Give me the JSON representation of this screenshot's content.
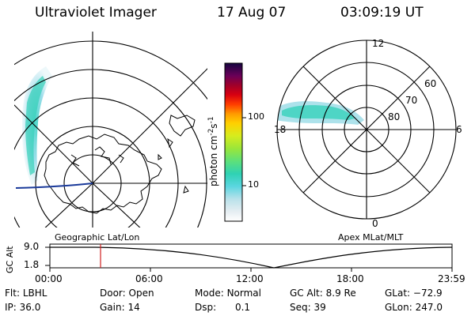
{
  "header": {
    "title": "Ultraviolet Imager",
    "date": "17 Aug 07",
    "time": "03:09:19 UT"
  },
  "colorbar": {
    "unit_label": "photon cm",
    "unit_exp1": "-2",
    "unit_s": "s",
    "unit_exp2": "-1",
    "ticks": [
      "100",
      "10"
    ]
  },
  "left_panel": {
    "caption": "Geographic Lat/Lon"
  },
  "right_panel": {
    "caption": "Apex MLat/MLT",
    "mlt_labels": [
      "12",
      "18",
      "6",
      "0"
    ],
    "lat_labels": [
      "60",
      "70",
      "80"
    ]
  },
  "timeline": {
    "axis_label": "GC Alt",
    "y_ticks": [
      "9.0",
      "1.8"
    ],
    "x_ticks": [
      "00:00",
      "06:00",
      "12:00",
      "18:00",
      "23:59"
    ]
  },
  "info": {
    "flt_label": "Flt:",
    "flt_value": "LBHL",
    "door_label": "Door:",
    "door_value": "Open",
    "mode_label": "Mode:",
    "mode_value": "Normal",
    "gcalt_label": "GC Alt:",
    "gcalt_value": "8.9 Re",
    "glat_label": "GLat:",
    "glat_value": "−72.9",
    "ip_label": "IP:",
    "ip_value": "36.0",
    "gain_label": "Gain:",
    "gain_value": "14",
    "dsp_label": "Dsp:",
    "dsp_value": "0.1",
    "seq_label": "Seq:",
    "seq_value": "39",
    "glon_label": "GLon:",
    "glon_value": "247.0"
  }
}
